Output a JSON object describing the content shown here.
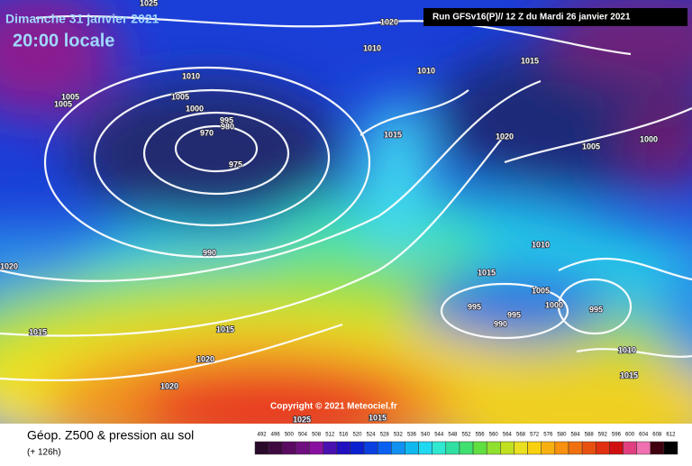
{
  "header": {
    "date": "Dimanche 31 janvier 2021",
    "time": "20:00 locale",
    "run": "Run GFSv16(P)// 12 Z du Mardi 26 janvier 2021"
  },
  "isobar_labels": [
    "1025",
    "1020",
    "1015",
    "1010",
    "1010",
    "1010",
    "1005",
    "1005",
    "1005",
    "1000",
    "995",
    "980",
    "970",
    "975",
    "1015",
    "1020",
    "1005",
    "1000",
    "990",
    "1010",
    "1020",
    "1015",
    "1005",
    "995",
    "995",
    "1000",
    "990",
    "995",
    "1015",
    "1015",
    "1020",
    "1010",
    "1015",
    "1020",
    "1025",
    "1015"
  ],
  "copyright": "Copyright © 2021 Meteociel.fr",
  "footer": {
    "title": "Géop. Z500 & pression au sol",
    "lead": "(+ 126h)"
  },
  "scale": {
    "labels": [
      "492",
      "496",
      "500",
      "504",
      "508",
      "512",
      "516",
      "520",
      "524",
      "528",
      "532",
      "536",
      "540",
      "544",
      "548",
      "552",
      "556",
      "560",
      "564",
      "568",
      "572",
      "576",
      "580",
      "584",
      "588",
      "592",
      "596",
      "600",
      "604",
      "608",
      "612"
    ]
  }
}
